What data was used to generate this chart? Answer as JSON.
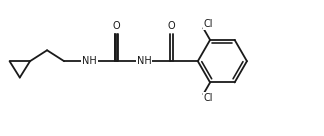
{
  "bg_color": "#ffffff",
  "line_color": "#1a1a1a",
  "text_color": "#1a1a1a",
  "lw": 1.3,
  "figsize": [
    3.24,
    1.36
  ],
  "dpi": 100,
  "labels": {
    "O1": "O",
    "O2": "O",
    "NH1": "NH",
    "NH2": "NH",
    "Cl1": "Cl",
    "Cl2": "Cl"
  },
  "font_size": 7.0,
  "xlim": [
    0,
    9.5
  ],
  "ylim": [
    0,
    3.8
  ]
}
